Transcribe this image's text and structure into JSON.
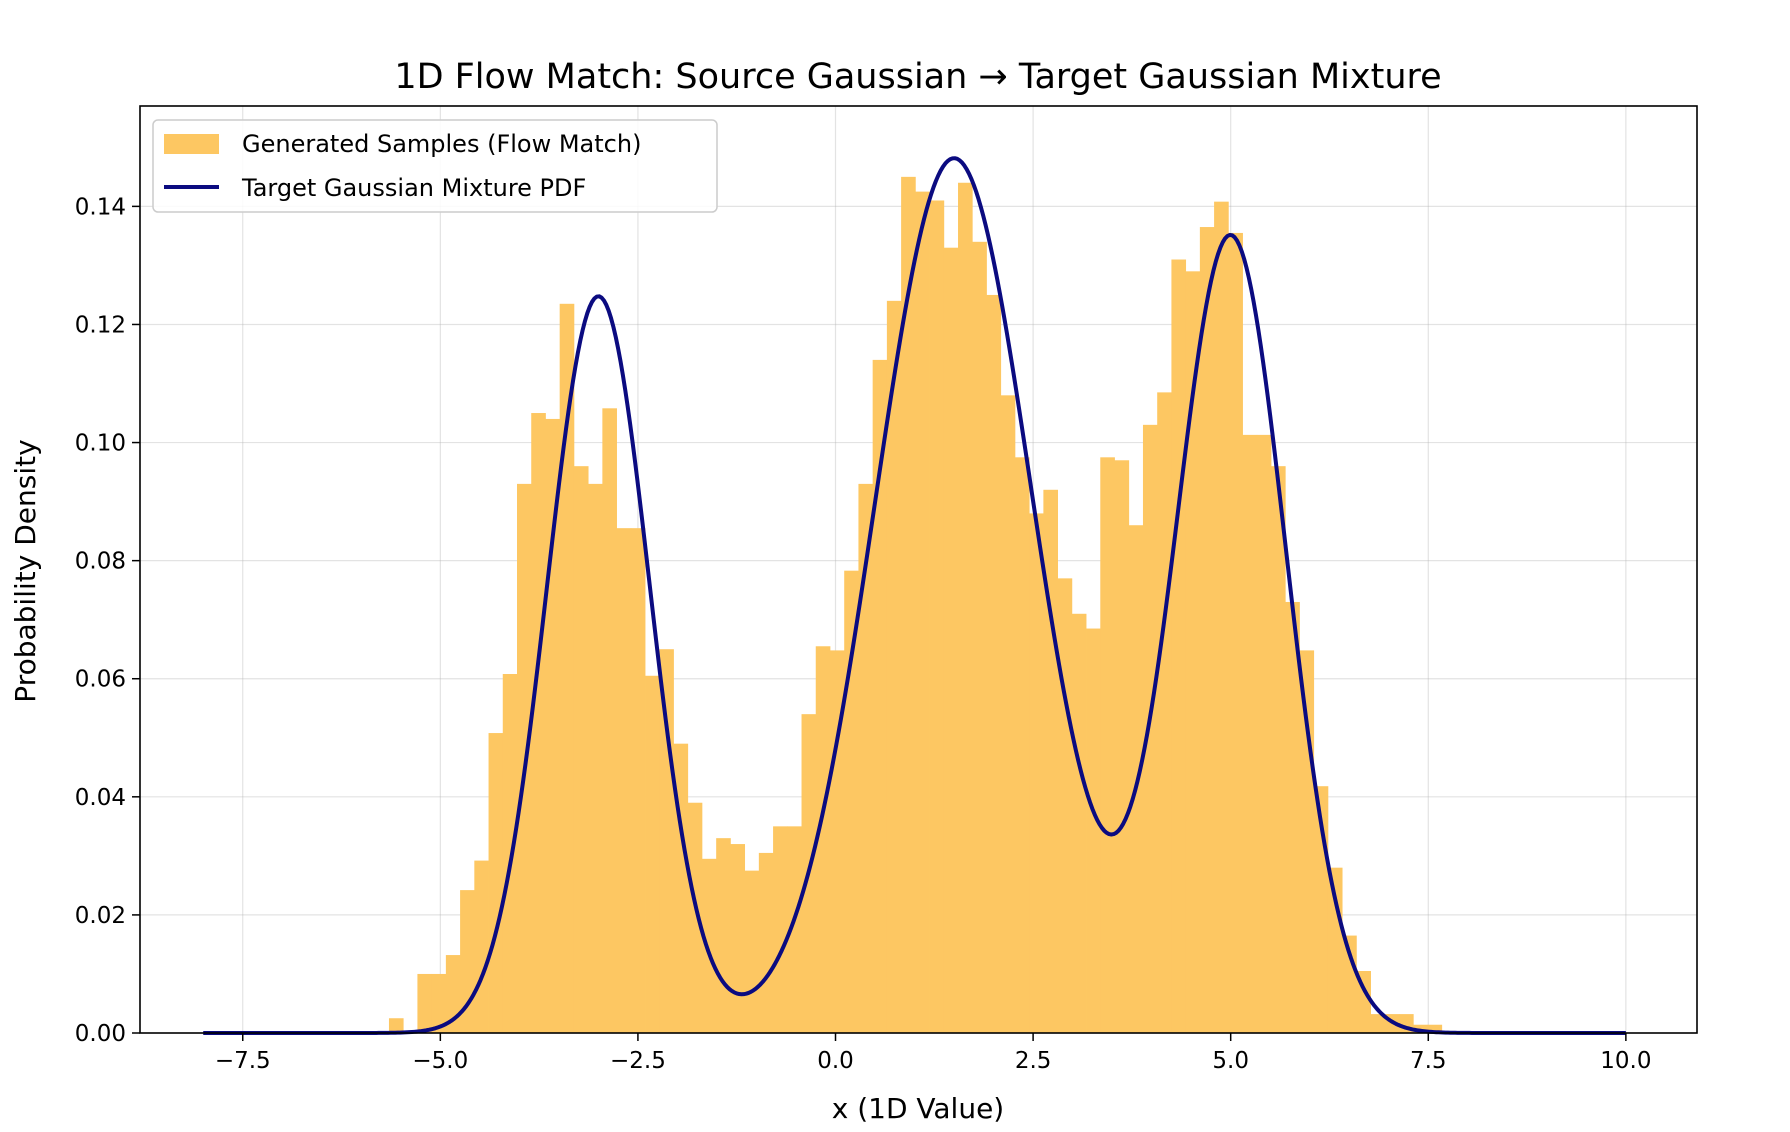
{
  "chart_data": {
    "type": "bar",
    "title": "1D Flow Match: Source Gaussian → Target Gaussian Mixture",
    "xlabel": "x (1D Value)",
    "ylabel": "Probability Density",
    "xlim": [
      -8.8,
      10.9
    ],
    "ylim": [
      0,
      0.157
    ],
    "grid": true,
    "legend_position": "top-left",
    "x_ticks": [
      -7.5,
      -5.0,
      -2.5,
      0.0,
      2.5,
      5.0,
      7.5,
      10.0
    ],
    "x_tick_labels": [
      "−7.5",
      "−5.0",
      "−2.5",
      "0.0",
      "2.5",
      "5.0",
      "7.5",
      "10.0"
    ],
    "y_ticks": [
      0.0,
      0.02,
      0.04,
      0.06,
      0.08,
      0.1,
      0.12,
      0.14
    ],
    "y_tick_labels": [
      "0.00",
      "0.02",
      "0.04",
      "0.06",
      "0.08",
      "0.10",
      "0.12",
      "0.14"
    ],
    "histogram": {
      "name": "Generated Samples (Flow Match)",
      "color": "#fdc762",
      "bin_start": -5.65,
      "bin_width": 0.18,
      "values": [
        0.0025,
        0.0,
        0.01,
        0.01,
        0.0132,
        0.0242,
        0.0292,
        0.0508,
        0.0608,
        0.093,
        0.105,
        0.104,
        0.1235,
        0.096,
        0.093,
        0.1058,
        0.0855,
        0.0855,
        0.0605,
        0.065,
        0.049,
        0.039,
        0.0295,
        0.033,
        0.032,
        0.0275,
        0.0305,
        0.035,
        0.035,
        0.054,
        0.0655,
        0.0648,
        0.0783,
        0.093,
        0.114,
        0.124,
        0.145,
        0.1425,
        0.141,
        0.133,
        0.144,
        0.134,
        0.125,
        0.108,
        0.0975,
        0.088,
        0.092,
        0.077,
        0.071,
        0.0685,
        0.0975,
        0.097,
        0.086,
        0.103,
        0.1085,
        0.131,
        0.129,
        0.1365,
        0.1408,
        0.1355,
        0.1013,
        0.1013,
        0.096,
        0.073,
        0.0648,
        0.0418,
        0.028,
        0.0165,
        0.0105,
        0.0032,
        0.0032,
        0.0032,
        0.0014,
        0.0014
      ]
    },
    "pdf_series": {
      "name": "Target Gaussian Mixture PDF",
      "color": "#0b0b80",
      "x_range": [
        -8.0,
        10.0
      ],
      "components": [
        {
          "mean": -3.0,
          "std": 0.65,
          "weight": 0.2033
        },
        {
          "mean": 1.5,
          "std": 1.0,
          "weight": 0.3714
        },
        {
          "mean": 5.0,
          "std": 0.7,
          "weight": 0.2366
        }
      ]
    }
  }
}
